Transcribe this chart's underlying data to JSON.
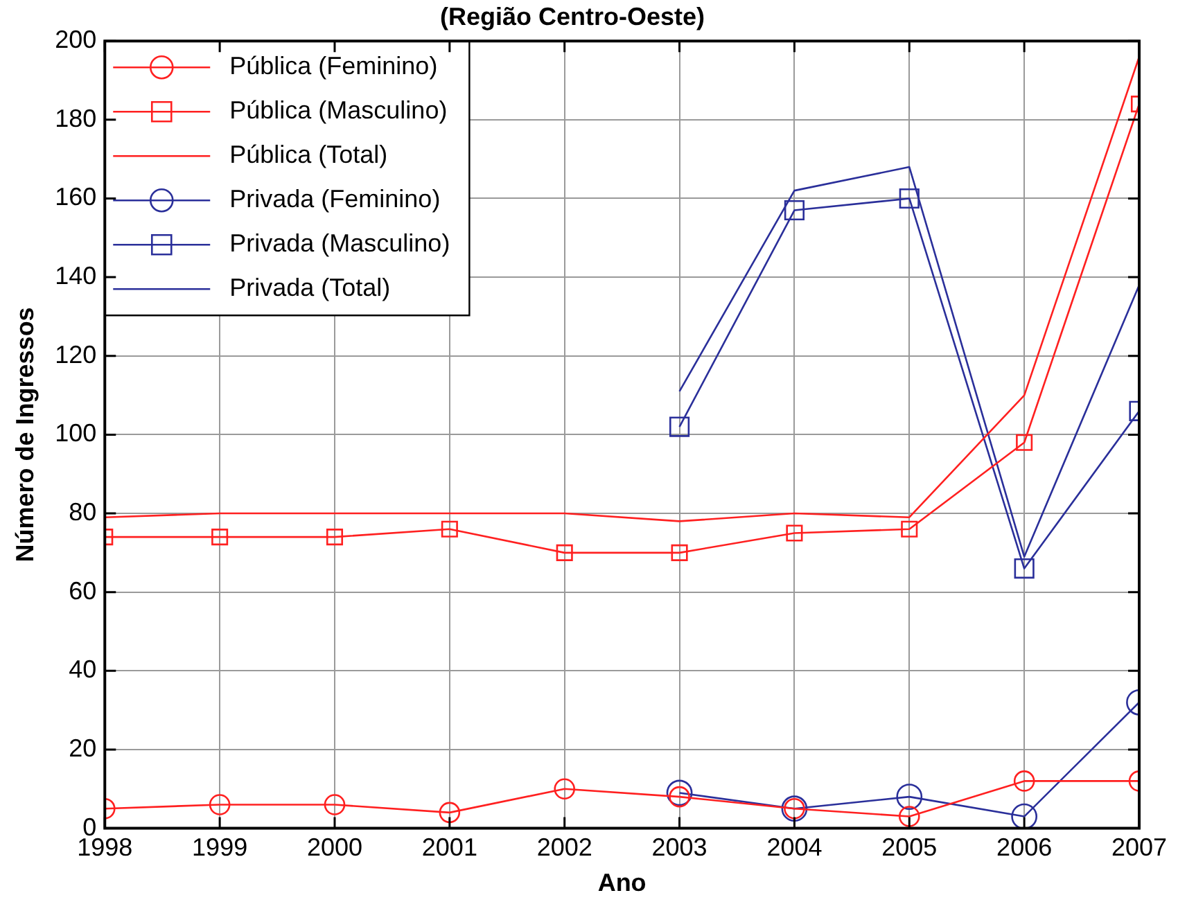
{
  "chart_data": {
    "type": "line",
    "title": "(Região Centro-Oeste)",
    "xlabel": "Ano",
    "ylabel": "Número de Ingressos",
    "x": [
      1998,
      1999,
      2000,
      2001,
      2002,
      2003,
      2004,
      2005,
      2006,
      2007
    ],
    "xlim": [
      1998,
      2007
    ],
    "xticks": [
      1998,
      1999,
      2000,
      2001,
      2002,
      2003,
      2004,
      2005,
      2006,
      2007
    ],
    "ylim": [
      0,
      200
    ],
    "yticks": [
      0,
      20,
      40,
      60,
      80,
      100,
      120,
      140,
      160,
      180,
      200
    ],
    "grid": true,
    "legend": "top left",
    "line_style": "solid",
    "series": [
      {
        "name": "Pública (Feminino)",
        "color": "#ff2020",
        "marker": "circle",
        "values": [
          5,
          6,
          6,
          4,
          10,
          8,
          5,
          3,
          12,
          12
        ]
      },
      {
        "name": "Pública (Masculino)",
        "color": "#ff2020",
        "marker": "square",
        "values": [
          74,
          74,
          74,
          76,
          70,
          70,
          75,
          76,
          98,
          184
        ]
      },
      {
        "name": "Pública (Total)",
        "color": "#ff2020",
        "marker": "none",
        "values": [
          79,
          80,
          80,
          80,
          80,
          78,
          80,
          79,
          110,
          196
        ]
      },
      {
        "name": "Privada (Feminino)",
        "color": "#2a2f9a",
        "marker": "circle",
        "values": [
          null,
          null,
          null,
          null,
          null,
          9,
          5,
          8,
          3,
          32
        ]
      },
      {
        "name": "Privada (Masculino)",
        "color": "#2a2f9a",
        "marker": "square",
        "values": [
          null,
          null,
          null,
          null,
          null,
          102,
          157,
          160,
          66,
          106
        ]
      },
      {
        "name": "Privada (Total)",
        "color": "#2a2f9a",
        "marker": "none",
        "values": [
          null,
          null,
          null,
          null,
          null,
          111,
          162,
          168,
          69,
          138
        ]
      }
    ]
  }
}
